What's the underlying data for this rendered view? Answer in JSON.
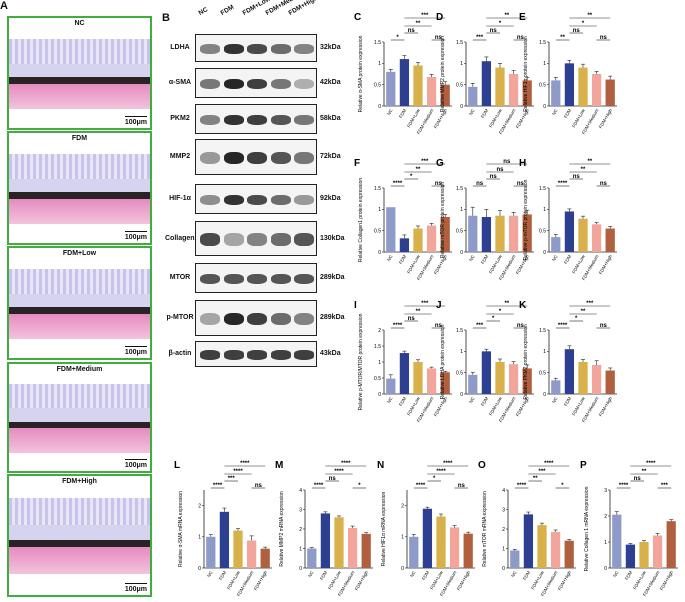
{
  "panel_a": {
    "label": "A",
    "scale_text": "100μm",
    "groups": [
      "NC",
      "FDM",
      "FDM+Low",
      "FDM+Medium",
      "FDM+High"
    ]
  },
  "panel_b": {
    "label": "B",
    "lanes": [
      "NC",
      "FDM",
      "FDM+Low",
      "FDM+Medium",
      "FDM+High"
    ],
    "proteins": [
      {
        "name": "LDHA",
        "kda": "32kDa",
        "levels": [
          0.5,
          0.85,
          0.75,
          0.6,
          0.5
        ]
      },
      {
        "name": "α-SMA",
        "kda": "42kDa",
        "levels": [
          0.55,
          0.9,
          0.8,
          0.55,
          0.3
        ]
      },
      {
        "name": "PKM2",
        "kda": "58kDa",
        "levels": [
          0.5,
          0.85,
          0.8,
          0.7,
          0.55
        ]
      },
      {
        "name": "MMP2",
        "kda": "72kDa",
        "levels": [
          0.4,
          0.9,
          0.8,
          0.7,
          0.55
        ]
      },
      {
        "name": "HIF-1α",
        "kda": "92kDa",
        "levels": [
          0.45,
          0.85,
          0.75,
          0.6,
          0.4
        ]
      },
      {
        "name": "Collagen1",
        "kda": "130kDa",
        "levels": [
          0.75,
          0.35,
          0.5,
          0.6,
          0.7
        ]
      },
      {
        "name": "MTOR",
        "kda": "289kDa",
        "levels": [
          0.7,
          0.7,
          0.7,
          0.7,
          0.7
        ]
      },
      {
        "name": "p-MTOR",
        "kda": "289kDa",
        "levels": [
          0.35,
          0.9,
          0.8,
          0.6,
          0.5
        ]
      },
      {
        "name": "β-actin",
        "kda": "43kDa",
        "levels": [
          0.8,
          0.8,
          0.8,
          0.8,
          0.8
        ]
      }
    ]
  },
  "chart_data": [
    {
      "type": "bar",
      "panel": "C",
      "ylabel": "Relative α-SMA protein expression",
      "categories": [
        "NC",
        "FDM",
        "FDM+Low",
        "FDM+Medium",
        "FDM+High"
      ],
      "values": [
        0.8,
        1.1,
        0.95,
        0.68,
        0.5
      ],
      "errors": [
        0.06,
        0.08,
        0.07,
        0.06,
        0.07
      ],
      "ylim": [
        0,
        1.5
      ],
      "sig": [
        {
          "a": 0,
          "b": 1,
          "t": "*"
        },
        {
          "a": 1,
          "b": 2,
          "t": "ns"
        },
        {
          "a": 1,
          "b": 3,
          "t": "**"
        },
        {
          "a": 3,
          "b": 4,
          "t": "ns"
        },
        {
          "a": 1,
          "b": 4,
          "t": "***"
        }
      ]
    },
    {
      "type": "bar",
      "panel": "D",
      "ylabel": "Relative MMP2 protein expression",
      "categories": [
        "NC",
        "FDM",
        "FDM+Low",
        "FDM+Medium",
        "FDM+High"
      ],
      "values": [
        0.45,
        1.05,
        0.9,
        0.75,
        0.6
      ],
      "errors": [
        0.08,
        0.1,
        0.1,
        0.08,
        0.07
      ],
      "ylim": [
        0,
        1.5
      ],
      "sig": [
        {
          "a": 0,
          "b": 1,
          "t": "***"
        },
        {
          "a": 1,
          "b": 2,
          "t": "ns"
        },
        {
          "a": 1,
          "b": 3,
          "t": "*"
        },
        {
          "a": 3,
          "b": 4,
          "t": "ns"
        },
        {
          "a": 1,
          "b": 4,
          "t": "**"
        }
      ]
    },
    {
      "type": "bar",
      "panel": "E",
      "ylabel": "Relative HIF1α protein expression",
      "categories": [
        "NC",
        "FDM",
        "FDM+Low",
        "FDM+Medium",
        "FDM+High"
      ],
      "values": [
        0.6,
        1.0,
        0.9,
        0.75,
        0.62
      ],
      "errors": [
        0.07,
        0.07,
        0.08,
        0.06,
        0.08
      ],
      "ylim": [
        0,
        1.5
      ],
      "sig": [
        {
          "a": 0,
          "b": 1,
          "t": "**"
        },
        {
          "a": 1,
          "b": 2,
          "t": "ns"
        },
        {
          "a": 1,
          "b": 3,
          "t": "*"
        },
        {
          "a": 3,
          "b": 4,
          "t": "ns"
        },
        {
          "a": 1,
          "b": 4,
          "t": "**"
        }
      ]
    },
    {
      "type": "bar",
      "panel": "F",
      "ylabel": "Relative Collagen1 protein expression",
      "categories": [
        "NC",
        "FDM",
        "FDM+Low",
        "FDM+Medium",
        "FDM+High"
      ],
      "values": [
        1.05,
        0.32,
        0.55,
        0.62,
        0.82
      ],
      "errors": [
        0.0,
        0.08,
        0.06,
        0.05,
        0.06
      ],
      "ylim": [
        0,
        1.5
      ],
      "sig": [
        {
          "a": 0,
          "b": 1,
          "t": "****"
        },
        {
          "a": 1,
          "b": 2,
          "t": "*"
        },
        {
          "a": 1,
          "b": 3,
          "t": "**"
        },
        {
          "a": 3,
          "b": 4,
          "t": "ns"
        },
        {
          "a": 1,
          "b": 4,
          "t": "***"
        }
      ]
    },
    {
      "type": "bar",
      "panel": "G",
      "ylabel": "Relative mTOR protein expression",
      "categories": [
        "NC",
        "FDM",
        "FDM+Low",
        "FDM+Medium",
        "FDM+High"
      ],
      "values": [
        0.85,
        0.82,
        0.85,
        0.85,
        0.88
      ],
      "errors": [
        0.2,
        0.18,
        0.12,
        0.08,
        0.1
      ],
      "ylim": [
        0,
        1.5
      ],
      "sig": [
        {
          "a": 0,
          "b": 1,
          "t": "ns"
        },
        {
          "a": 1,
          "b": 2,
          "t": "ns"
        },
        {
          "a": 1,
          "b": 3,
          "t": "ns"
        },
        {
          "a": 3,
          "b": 4,
          "t": "ns"
        },
        {
          "a": 1,
          "b": 4,
          "t": "ns"
        }
      ]
    },
    {
      "type": "bar",
      "panel": "H",
      "ylabel": "Relative p-mTOR protein expression",
      "categories": [
        "NC",
        "FDM",
        "FDM+Low",
        "FDM+Medium",
        "FDM+High"
      ],
      "values": [
        0.35,
        0.95,
        0.78,
        0.65,
        0.55
      ],
      "errors": [
        0.06,
        0.06,
        0.06,
        0.04,
        0.05
      ],
      "ylim": [
        0,
        1.5
      ],
      "sig": [
        {
          "a": 0,
          "b": 1,
          "t": "****"
        },
        {
          "a": 1,
          "b": 2,
          "t": "ns"
        },
        {
          "a": 1,
          "b": 3,
          "t": "**"
        },
        {
          "a": 3,
          "b": 4,
          "t": "ns"
        },
        {
          "a": 1,
          "b": 4,
          "t": "**"
        }
      ]
    },
    {
      "type": "bar",
      "panel": "I",
      "ylabel": "Relative p-MTOR/MTOR protein expression",
      "categories": [
        "NC",
        "FDM",
        "FDM+Low",
        "FDM+Medium",
        "FDM+High"
      ],
      "values": [
        0.48,
        1.28,
        1.0,
        0.8,
        0.68
      ],
      "errors": [
        0.12,
        0.06,
        0.07,
        0.04,
        0.03
      ],
      "ylim": [
        0,
        2.0
      ],
      "sig": [
        {
          "a": 0,
          "b": 1,
          "t": "****"
        },
        {
          "a": 1,
          "b": 2,
          "t": "ns"
        },
        {
          "a": 1,
          "b": 3,
          "t": "**"
        },
        {
          "a": 3,
          "b": 4,
          "t": "ns"
        },
        {
          "a": 1,
          "b": 4,
          "t": "***"
        }
      ]
    },
    {
      "type": "bar",
      "panel": "J",
      "ylabel": "Relative LDHA protein expression",
      "categories": [
        "NC",
        "FDM",
        "FDM+Low",
        "FDM+Medium",
        "FDM+High"
      ],
      "values": [
        0.45,
        1.0,
        0.75,
        0.7,
        0.6
      ],
      "errors": [
        0.06,
        0.05,
        0.07,
        0.06,
        0.08
      ],
      "ylim": [
        0,
        1.5
      ],
      "sig": [
        {
          "a": 0,
          "b": 1,
          "t": "***"
        },
        {
          "a": 1,
          "b": 2,
          "t": "*"
        },
        {
          "a": 1,
          "b": 3,
          "t": "*"
        },
        {
          "a": 3,
          "b": 4,
          "t": "ns"
        },
        {
          "a": 1,
          "b": 4,
          "t": "**"
        }
      ]
    },
    {
      "type": "bar",
      "panel": "K",
      "ylabel": "Relative PKM2 protein expression",
      "categories": [
        "NC",
        "FDM",
        "FDM+Low",
        "FDM+Medium",
        "FDM+High"
      ],
      "values": [
        0.32,
        1.05,
        0.75,
        0.68,
        0.55
      ],
      "errors": [
        0.05,
        0.08,
        0.06,
        0.1,
        0.06
      ],
      "ylim": [
        0,
        1.5
      ],
      "sig": [
        {
          "a": 0,
          "b": 1,
          "t": "****"
        },
        {
          "a": 1,
          "b": 2,
          "t": "*"
        },
        {
          "a": 1,
          "b": 3,
          "t": "**"
        },
        {
          "a": 3,
          "b": 4,
          "t": "ns"
        },
        {
          "a": 1,
          "b": 4,
          "t": "***"
        }
      ]
    },
    {
      "type": "bar",
      "panel": "L",
      "ylabel": "Relative α-SMA mRNA expression",
      "categories": [
        "NC",
        "FDM",
        "FDM+Low",
        "FDM+Medium",
        "FDM+High"
      ],
      "values": [
        1.0,
        1.8,
        1.2,
        0.88,
        0.62
      ],
      "errors": [
        0.07,
        0.12,
        0.06,
        0.15,
        0.05
      ],
      "ylim": [
        0,
        2.5
      ],
      "sig": [
        {
          "a": 0,
          "b": 1,
          "t": "****"
        },
        {
          "a": 1,
          "b": 2,
          "t": "***"
        },
        {
          "a": 1,
          "b": 3,
          "t": "****"
        },
        {
          "a": 3,
          "b": 4,
          "t": "ns"
        },
        {
          "a": 1,
          "b": 4,
          "t": "****"
        }
      ]
    },
    {
      "type": "bar",
      "panel": "M",
      "ylabel": "Relative MMP2 mRNA expression",
      "categories": [
        "NC",
        "FDM",
        "FDM+Low",
        "FDM+Medium",
        "FDM+High"
      ],
      "values": [
        1.0,
        2.8,
        2.6,
        2.05,
        1.75
      ],
      "errors": [
        0.05,
        0.08,
        0.07,
        0.1,
        0.06
      ],
      "ylim": [
        0,
        4
      ],
      "sig": [
        {
          "a": 0,
          "b": 1,
          "t": "****"
        },
        {
          "a": 1,
          "b": 2,
          "t": "ns"
        },
        {
          "a": 1,
          "b": 3,
          "t": "****"
        },
        {
          "a": 3,
          "b": 4,
          "t": "*"
        },
        {
          "a": 1,
          "b": 4,
          "t": "****"
        }
      ]
    },
    {
      "type": "bar",
      "panel": "N",
      "ylabel": "Relative HIF1α mRNA expression",
      "categories": [
        "NC",
        "FDM",
        "FDM+Low",
        "FDM+Medium",
        "FDM+High"
      ],
      "values": [
        1.0,
        1.9,
        1.65,
        1.3,
        1.1
      ],
      "errors": [
        0.08,
        0.05,
        0.08,
        0.06,
        0.05
      ],
      "ylim": [
        0,
        2.5
      ],
      "sig": [
        {
          "a": 0,
          "b": 1,
          "t": "****"
        },
        {
          "a": 1,
          "b": 2,
          "t": "*"
        },
        {
          "a": 1,
          "b": 3,
          "t": "****"
        },
        {
          "a": 3,
          "b": 4,
          "t": "ns"
        },
        {
          "a": 1,
          "b": 4,
          "t": "****"
        }
      ]
    },
    {
      "type": "bar",
      "panel": "O",
      "ylabel": "Relative mTOR mRNA expression",
      "categories": [
        "NC",
        "FDM",
        "FDM+Low",
        "FDM+Medium",
        "FDM+High"
      ],
      "values": [
        0.9,
        2.75,
        2.2,
        1.85,
        1.4
      ],
      "errors": [
        0.05,
        0.12,
        0.1,
        0.1,
        0.06
      ],
      "ylim": [
        0,
        4
      ],
      "sig": [
        {
          "a": 0,
          "b": 1,
          "t": "****"
        },
        {
          "a": 1,
          "b": 2,
          "t": "**"
        },
        {
          "a": 1,
          "b": 3,
          "t": "***"
        },
        {
          "a": 3,
          "b": 4,
          "t": "*"
        },
        {
          "a": 1,
          "b": 4,
          "t": "****"
        }
      ]
    },
    {
      "type": "bar",
      "panel": "P",
      "ylabel": "Relative Collagen 1 mRNA expression",
      "categories": [
        "NC",
        "FDM",
        "FDM+Low",
        "FDM+Medium",
        "FDM+High"
      ],
      "values": [
        2.05,
        0.9,
        1.0,
        1.25,
        1.8
      ],
      "errors": [
        0.12,
        0.05,
        0.05,
        0.08,
        0.06
      ],
      "ylim": [
        0,
        3
      ],
      "sig": [
        {
          "a": 0,
          "b": 1,
          "t": "****"
        },
        {
          "a": 1,
          "b": 2,
          "t": "ns"
        },
        {
          "a": 1,
          "b": 3,
          "t": "**"
        },
        {
          "a": 3,
          "b": 4,
          "t": "***"
        },
        {
          "a": 1,
          "b": 4,
          "t": "****"
        }
      ]
    }
  ],
  "colors": {
    "NC": "#8e9bc9",
    "FDM": "#2c3f91",
    "FDM+Low": "#d8b14a",
    "FDM+Medium": "#f2a69b",
    "FDM+High": "#b0603e",
    "border": "#3fae3f"
  }
}
